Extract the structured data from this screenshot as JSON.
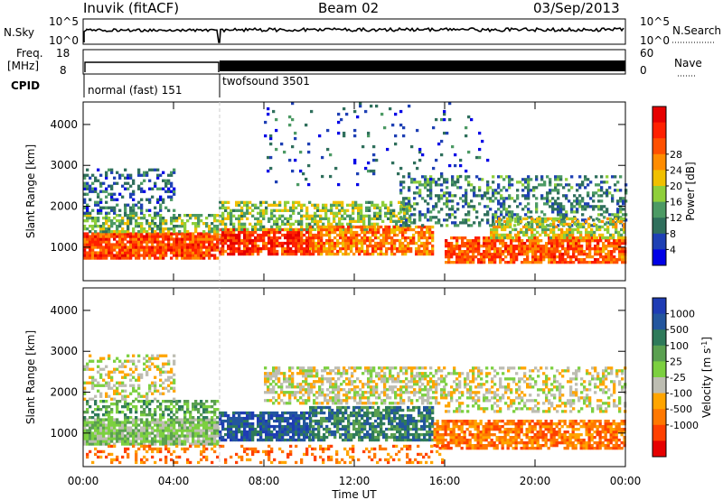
{
  "header": {
    "station": "Inuvik (fitACF)",
    "beam": "Beam 02",
    "date": "03/Sep/2013"
  },
  "top_panels": {
    "nsky_label": "N.Sky",
    "nsearch_label": "N.Search",
    "freq_label_1": "Freq.",
    "freq_label_2": "[MHz]",
    "nave_label": "Nave",
    "cpid_label": "CPID",
    "noise_tick_top": "10^5",
    "noise_tick_bottom": "10^0",
    "freq_tick_top": "18",
    "freq_tick_bottom": "8",
    "nave_tick_top": "60",
    "nave_tick_bottom": "0",
    "cpid_1": "normal (fast) 151",
    "cpid_2": "twofsound 3501"
  },
  "colors": {
    "power_scale": [
      "#0000e6",
      "#1e40b4",
      "#2f6f5c",
      "#4c9a64",
      "#8fcf3a",
      "#f0c000",
      "#ff8c00",
      "#ff5000",
      "#ff2000",
      "#e60000"
    ],
    "velocity_scale": [
      "#1e3cb4",
      "#23569e",
      "#2e7a5a",
      "#5aa050",
      "#7cd040",
      "#bdbdb2",
      "#ffa500",
      "#ff7800",
      "#ff4000",
      "#e60000"
    ]
  },
  "chart_data": [
    {
      "type": "heatmap",
      "ylabel": "Slant Range [km]",
      "xlabel": "Time UT",
      "x_tick_labels": [
        "00:00",
        "04:00",
        "08:00",
        "12:00",
        "16:00",
        "20:00",
        "00:00"
      ],
      "x_ticks_hours": [
        0,
        4,
        8,
        12,
        16,
        20,
        24
      ],
      "y_tick_labels": [
        "1000",
        "2000",
        "3000",
        "4000"
      ],
      "y_ticks": [
        1000,
        2000,
        3000,
        4000
      ],
      "xlim": [
        0,
        24
      ],
      "ylim": [
        180,
        4550
      ],
      "colorbar_label": "Power [dB]",
      "colorbar_ticks": [
        "4",
        "8",
        "12",
        "16",
        "20",
        "24",
        "28"
      ],
      "colorbar_values": [
        4,
        8,
        12,
        16,
        20,
        24,
        28
      ],
      "range": [
        0,
        32
      ],
      "bands": [
        {
          "t0": 0.0,
          "t1": 6.0,
          "r0": 700,
          "r1": 1350,
          "p": 25,
          "dens": 0.9
        },
        {
          "t0": 0.0,
          "t1": 6.0,
          "r0": 1350,
          "r1": 1800,
          "p": 13,
          "dens": 0.6
        },
        {
          "t0": 0.0,
          "t1": 4.0,
          "r0": 1800,
          "r1": 2900,
          "p": 7,
          "dens": 0.35
        },
        {
          "t0": 6.0,
          "t1": 10.0,
          "r0": 800,
          "r1": 1400,
          "p": 26,
          "dens": 0.85
        },
        {
          "t0": 6.0,
          "t1": 14.5,
          "r0": 1400,
          "r1": 2100,
          "p": 14,
          "dens": 0.55
        },
        {
          "t0": 10.0,
          "t1": 15.5,
          "r0": 800,
          "r1": 1500,
          "p": 22,
          "dens": 0.75
        },
        {
          "t0": 14.0,
          "t1": 24.0,
          "r0": 1500,
          "r1": 2700,
          "p": 9,
          "dens": 0.35
        },
        {
          "t0": 16.0,
          "t1": 24.0,
          "r0": 600,
          "r1": 1200,
          "p": 24,
          "dens": 0.8
        },
        {
          "t0": 18.0,
          "t1": 24.0,
          "r0": 1200,
          "r1": 1700,
          "p": 16,
          "dens": 0.6
        },
        {
          "t0": 8.0,
          "t1": 18.0,
          "r0": 2500,
          "r1": 4500,
          "p": 6,
          "dens": 0.05
        }
      ]
    },
    {
      "type": "heatmap",
      "ylabel": "Slant Range [km]",
      "xlabel": "Time UT",
      "x_tick_labels": [
        "00:00",
        "04:00",
        "08:00",
        "12:00",
        "16:00",
        "20:00",
        "00:00"
      ],
      "x_ticks_hours": [
        0,
        4,
        8,
        12,
        16,
        20,
        24
      ],
      "y_tick_labels": [
        "1000",
        "2000",
        "3000",
        "4000"
      ],
      "y_ticks": [
        1000,
        2000,
        3000,
        4000
      ],
      "xlim": [
        0,
        24
      ],
      "ylim": [
        180,
        4550
      ],
      "colorbar_label": "Velocity [m s^-1]",
      "colorbar_ticks": [
        "1000",
        "500",
        "100",
        "25",
        "-25",
        "-100",
        "-500",
        "-1000"
      ],
      "colorbar_values": [
        1000,
        500,
        100,
        25,
        -25,
        -100,
        -500,
        -1000
      ],
      "bands": [
        {
          "t0": 0.0,
          "t1": 6.0,
          "r0": 700,
          "r1": 1350,
          "v": 4,
          "dens": 0.9
        },
        {
          "t0": 0.0,
          "t1": 6.0,
          "r0": 1350,
          "r1": 1800,
          "v": 3,
          "dens": 0.5
        },
        {
          "t0": 0.0,
          "t1": 4.0,
          "r0": 1800,
          "r1": 2900,
          "v": 5,
          "dens": 0.35
        },
        {
          "t0": 6.0,
          "t1": 10.0,
          "r0": 800,
          "r1": 1500,
          "v": 1,
          "dens": 0.8
        },
        {
          "t0": 8.0,
          "t1": 16.0,
          "r0": 1700,
          "r1": 2600,
          "v": 5,
          "dens": 0.55
        },
        {
          "t0": 10.0,
          "t1": 15.5,
          "r0": 800,
          "r1": 1600,
          "v": 2,
          "dens": 0.7
        },
        {
          "t0": 15.5,
          "t1": 24.0,
          "r0": 600,
          "r1": 1300,
          "v": 7,
          "dens": 0.75
        },
        {
          "t0": 16.0,
          "t1": 24.0,
          "r0": 1500,
          "r1": 2600,
          "v": 5,
          "dens": 0.4
        },
        {
          "t0": 0.0,
          "t1": 16.0,
          "r0": 250,
          "r1": 700,
          "v": 7,
          "dens": 0.25
        }
      ]
    }
  ]
}
